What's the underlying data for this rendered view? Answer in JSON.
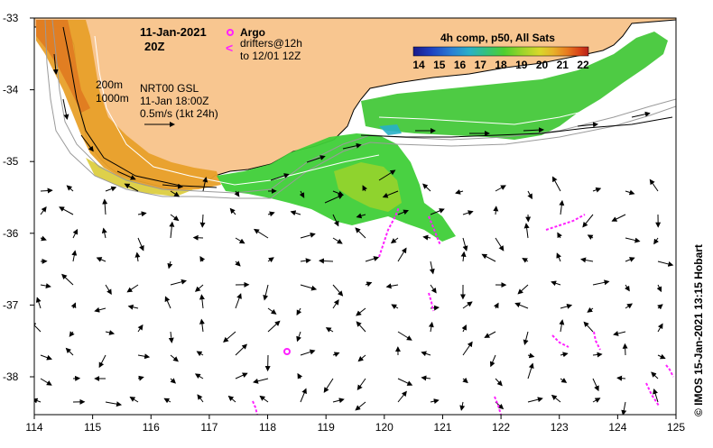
{
  "title": {
    "date": "11-Jan-2021",
    "time": "20Z"
  },
  "legend_markers": {
    "argo_label": "Argo",
    "drifters_label": "drifters@12h",
    "drifters_sub": "to 12/01 12Z"
  },
  "colorbar": {
    "title": "4h comp, p50, All Sats",
    "ticks": [
      "14",
      "15",
      "16",
      "17",
      "18",
      "19",
      "20",
      "21",
      "22"
    ],
    "colors": [
      "#1a1a8a",
      "#1f3fbf",
      "#2a7fd4",
      "#28b0c8",
      "#35c27a",
      "#4fcf2e",
      "#9bd42a",
      "#d8d82a",
      "#e8b12a",
      "#e87a20",
      "#d84318",
      "#b8201a"
    ]
  },
  "annotations": {
    "depth_200": "200m",
    "depth_1000": "1000m",
    "model": "NRT00 GSL",
    "model_time": "11-Jan 18:00Z",
    "scale": "0.5m/s (1kt 24h)"
  },
  "axes": {
    "x_ticks": [
      "114",
      "115",
      "116",
      "117",
      "118",
      "119",
      "120",
      "121",
      "122",
      "123",
      "124",
      "125"
    ],
    "y_ticks": [
      "-33",
      "-34",
      "-35",
      "-36",
      "-37",
      "-38"
    ]
  },
  "credit": "© IMOS 15-Jan-2021 13:15 Hobart",
  "colors": {
    "land": "#f8c690",
    "drifter": "#ff20ff",
    "argo": "#ff20ff"
  }
}
